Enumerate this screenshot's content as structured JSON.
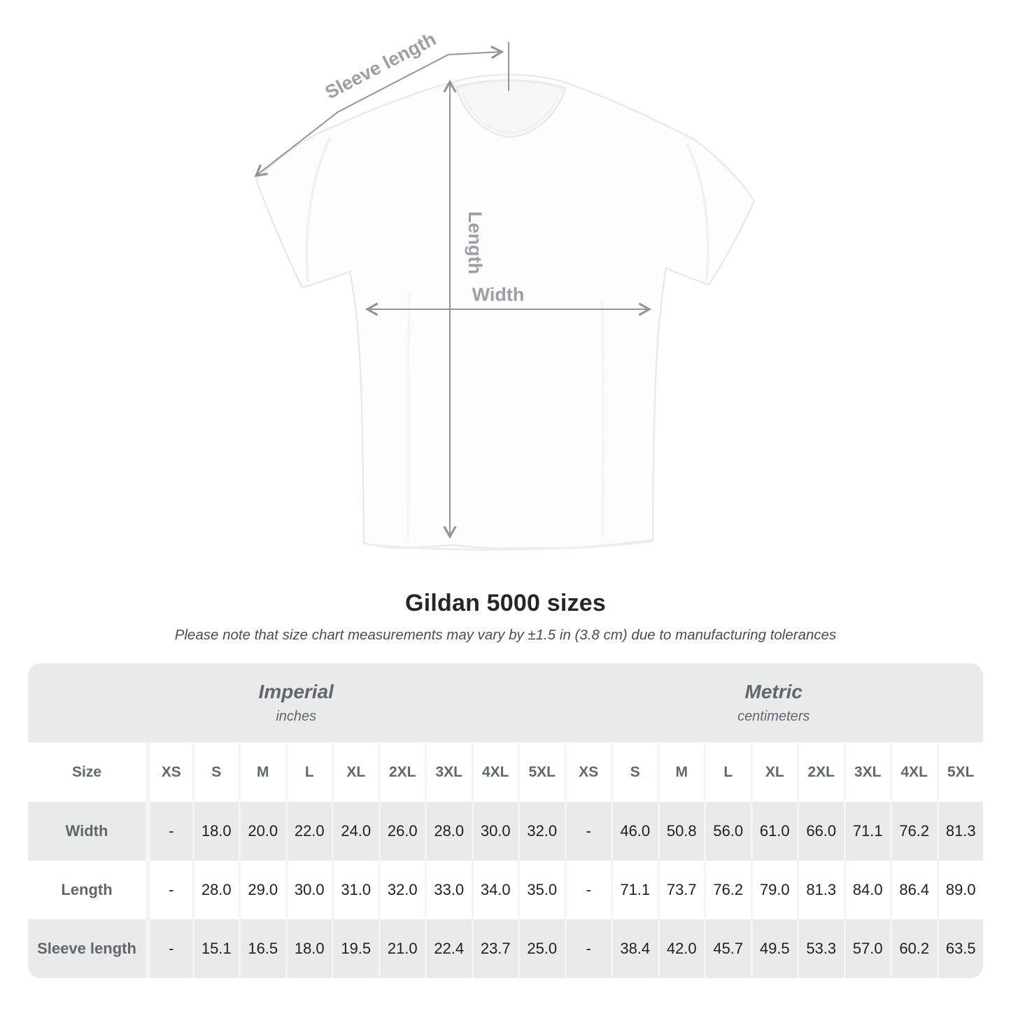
{
  "diagram": {
    "sleeve_length_label": "Sleeve length",
    "length_label": "Length",
    "width_label": "Width"
  },
  "title": "Gildan 5000 sizes",
  "subtitle": "Please note that size chart measurements may vary by ±1.5 in (3.8 cm) due to manufacturing tolerances",
  "chart_data": {
    "type": "table",
    "title": "Gildan 5000 sizes",
    "section_headers": [
      {
        "label": "Imperial",
        "unit": "inches"
      },
      {
        "label": "Metric",
        "unit": "centimeters"
      }
    ],
    "corner_header": "Size",
    "size_columns": [
      "XS",
      "S",
      "M",
      "L",
      "XL",
      "2XL",
      "3XL",
      "4XL",
      "5XL"
    ],
    "rows": [
      {
        "label": "Width",
        "imperial": [
          "-",
          "18.0",
          "20.0",
          "22.0",
          "24.0",
          "26.0",
          "28.0",
          "30.0",
          "32.0"
        ],
        "metric": [
          "-",
          "46.0",
          "50.8",
          "56.0",
          "61.0",
          "66.0",
          "71.1",
          "76.2",
          "81.3"
        ]
      },
      {
        "label": "Length",
        "imperial": [
          "-",
          "28.0",
          "29.0",
          "30.0",
          "31.0",
          "32.0",
          "33.0",
          "34.0",
          "35.0"
        ],
        "metric": [
          "-",
          "71.1",
          "73.7",
          "76.2",
          "79.0",
          "81.3",
          "84.0",
          "86.4",
          "89.0"
        ]
      },
      {
        "label": "Sleeve length",
        "imperial": [
          "-",
          "15.1",
          "16.5",
          "18.0",
          "19.5",
          "21.0",
          "22.4",
          "23.7",
          "25.0"
        ],
        "metric": [
          "-",
          "38.4",
          "42.0",
          "45.7",
          "49.5",
          "53.3",
          "57.0",
          "60.2",
          "63.5"
        ]
      }
    ]
  },
  "colors": {
    "band_gray": "#e9eaea",
    "row_gray": "#e9eaea",
    "column_separator": "#f4f5f5",
    "header_text": "#5f686c",
    "data_text": "#1f1f1f",
    "annotation_line": "#919598",
    "annotation_label": "#9aa0a3",
    "title_text": "#262626",
    "subtitle_text": "#4c4c4c"
  }
}
